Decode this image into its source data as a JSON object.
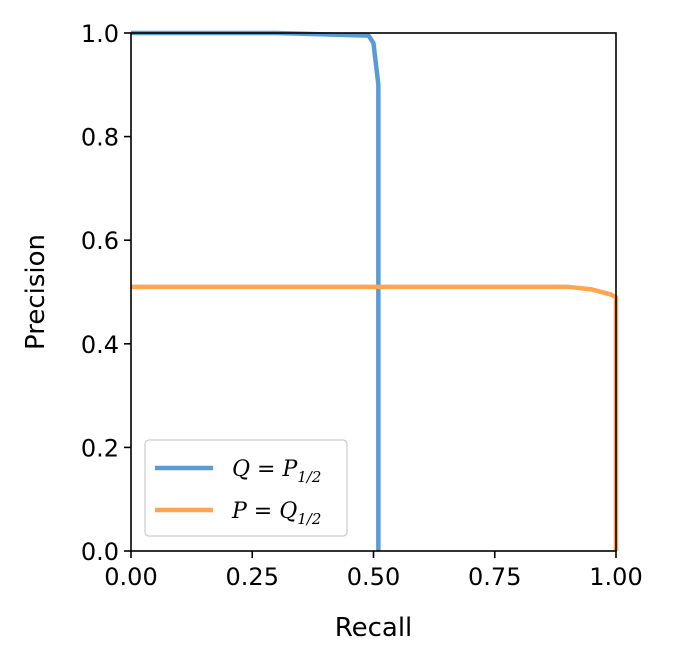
{
  "chart_data": {
    "type": "line",
    "xlabel": "Recall",
    "ylabel": "Precision",
    "xlim": [
      0,
      1
    ],
    "ylim": [
      0,
      1
    ],
    "xticks": [
      0,
      0.25,
      0.5,
      0.75,
      1
    ],
    "xtick_labels": [
      "0.00",
      "0.25",
      "0.50",
      "0.75",
      "1.00"
    ],
    "yticks": [
      0,
      0.2,
      0.4,
      0.6,
      0.8,
      1
    ],
    "ytick_labels": [
      "0.0",
      "0.2",
      "0.4",
      "0.6",
      "0.8",
      "1.0"
    ],
    "grid": false,
    "legend_position": "lower-left",
    "series": [
      {
        "name": "Q = P1/2",
        "legend_main": "Q = P",
        "legend_sub": "1/2",
        "color": "#5b9bd5",
        "x": [
          0.0,
          0.3,
          0.49,
          0.5,
          0.51,
          0.51,
          0.51
        ],
        "y": [
          1.0,
          1.0,
          0.995,
          0.98,
          0.9,
          0.5,
          0.0
        ]
      },
      {
        "name": "P = Q1/2",
        "legend_main": "P = Q",
        "legend_sub": "1/2",
        "color": "#ffa54f",
        "x": [
          0.0,
          0.5,
          0.9,
          0.95,
          0.99,
          1.0,
          1.0
        ],
        "y": [
          0.51,
          0.51,
          0.51,
          0.505,
          0.495,
          0.49,
          0.0
        ]
      }
    ]
  }
}
